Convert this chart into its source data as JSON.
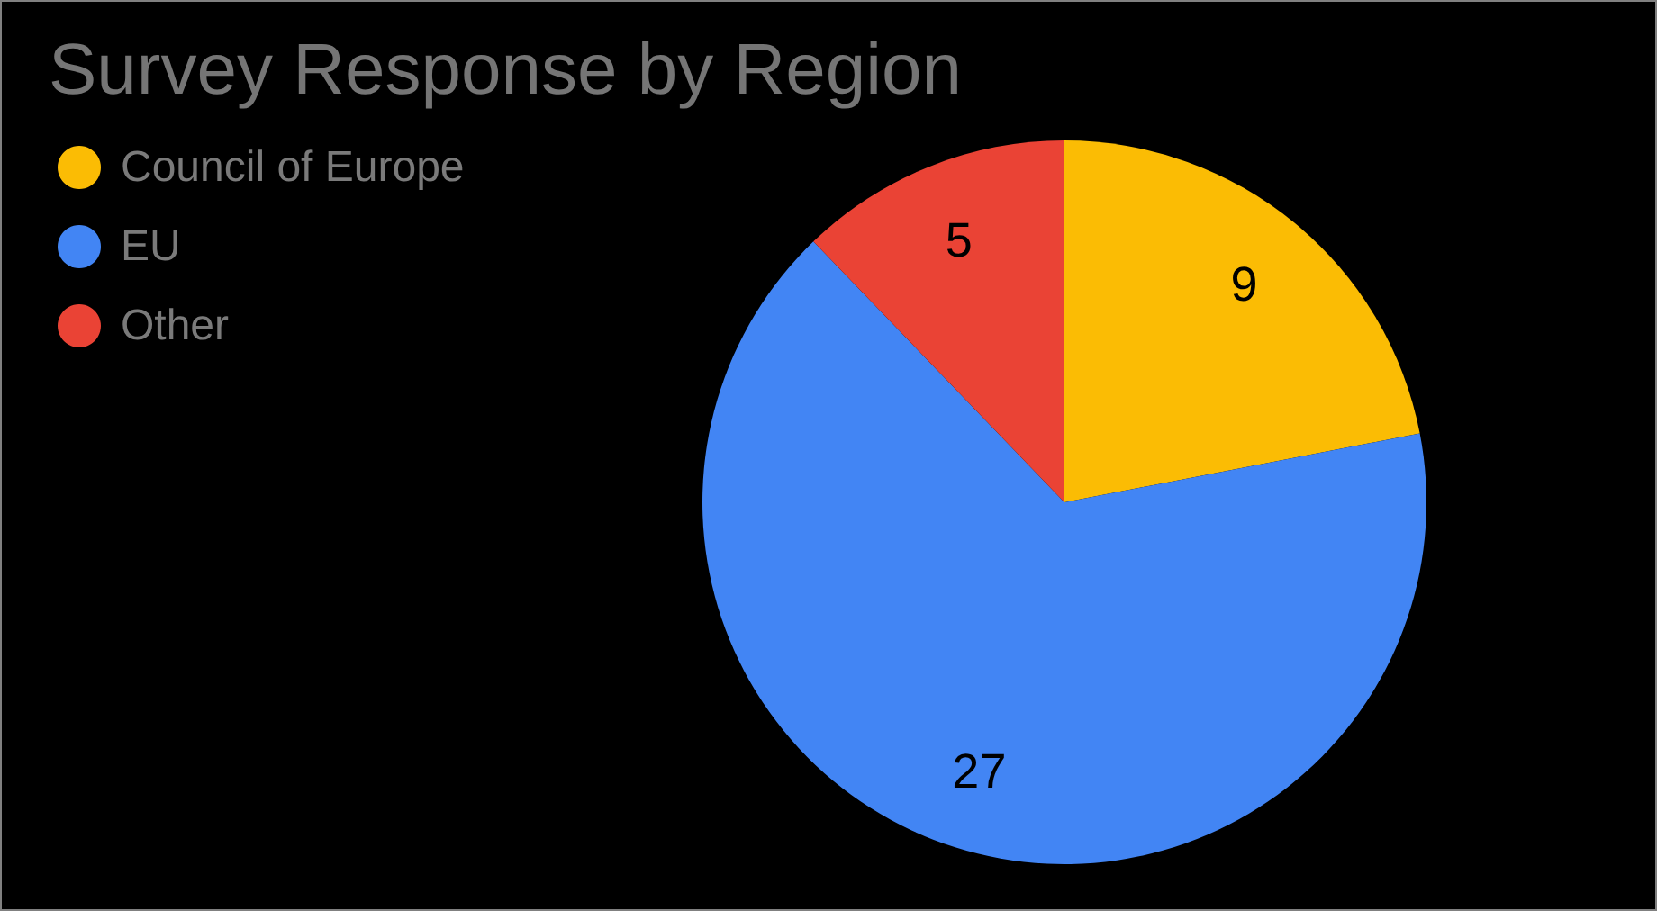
{
  "chart_data": {
    "type": "pie",
    "title": "Survey Response by Region",
    "categories": [
      "Council of Europe",
      "EU",
      "Other"
    ],
    "values": [
      9,
      27,
      5
    ],
    "colors": [
      "#fbbc04",
      "#4285f4",
      "#ea4335"
    ],
    "data_labels": true,
    "legend": "top left"
  }
}
